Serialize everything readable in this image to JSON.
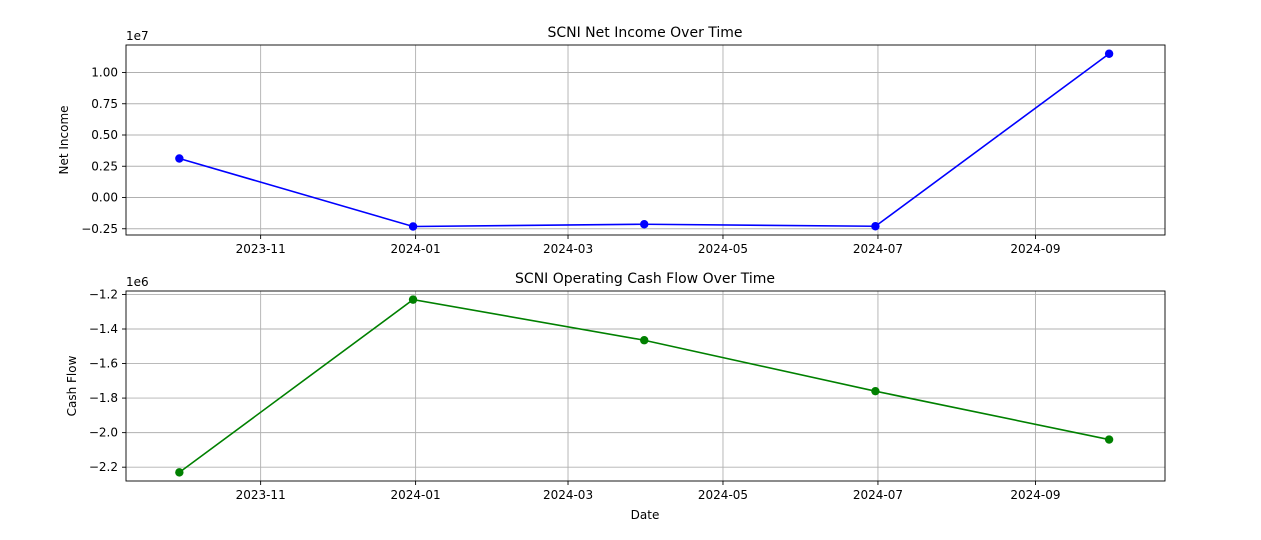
{
  "chart_data": [
    {
      "type": "line",
      "title": "SCNI Net Income Over Time",
      "xlabel": "",
      "ylabel": "Net Income",
      "offset_label": "1e7",
      "x": [
        "2023-09-30",
        "2023-12-31",
        "2024-03-31",
        "2024-06-30",
        "2024-09-30"
      ],
      "series": [
        {
          "values": [
            3120000,
            -2320000,
            -2140000,
            -2300000,
            11500000
          ],
          "color": "#0000ff"
        }
      ],
      "xticks": [
        "2023-11",
        "2024-01",
        "2024-03",
        "2024-05",
        "2024-07",
        "2024-09"
      ],
      "yticks": [
        1.0,
        0.75,
        0.5,
        0.25,
        0.0,
        -0.25
      ],
      "ytick_labels": [
        "1.00",
        "0.75",
        "0.50",
        "0.25",
        "0.00",
        "−0.25"
      ],
      "ylim": [
        -3000000,
        12200000
      ],
      "xlim": [
        "2023-09-09",
        "2024-10-22"
      ],
      "grid": true
    },
    {
      "type": "line",
      "title": "SCNI Operating Cash Flow Over Time",
      "xlabel": "Date",
      "ylabel": "Cash Flow",
      "offset_label": "1e6",
      "x": [
        "2023-09-30",
        "2023-12-31",
        "2024-03-31",
        "2024-06-30",
        "2024-09-30"
      ],
      "series": [
        {
          "values": [
            -2230000,
            -1230000,
            -1465000,
            -1760000,
            -2040000
          ],
          "color": "#008000"
        }
      ],
      "xticks": [
        "2023-11",
        "2024-01",
        "2024-03",
        "2024-05",
        "2024-07",
        "2024-09"
      ],
      "yticks": [
        -1.2,
        -1.4,
        -1.6,
        -1.8,
        -2.0,
        -2.2
      ],
      "ytick_labels": [
        "−1.2",
        "−1.4",
        "−1.6",
        "−1.8",
        "−2.0",
        "−2.2"
      ],
      "ylim": [
        -2280000,
        -1180000
      ],
      "xlim": [
        "2023-09-09",
        "2024-10-22"
      ],
      "grid": true
    }
  ]
}
